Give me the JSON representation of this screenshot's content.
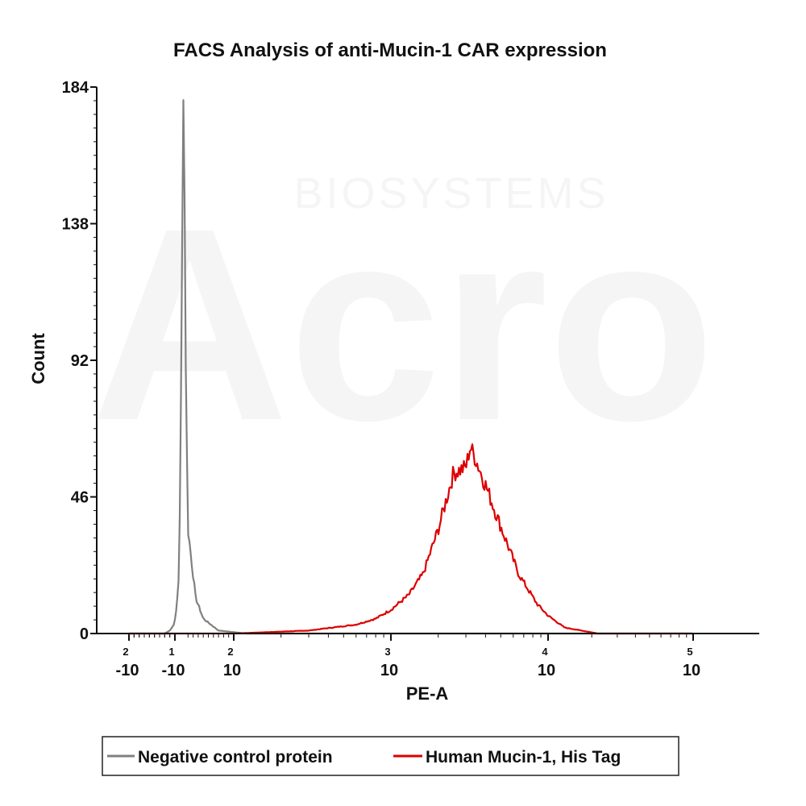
{
  "watermark": {
    "brand": "Acro",
    "subtitle": "BIOSYSTEMS"
  },
  "chart_data": {
    "type": "area",
    "title": "FACS Analysis of anti-Mucin-1 CAR expression",
    "xlabel": "PE-A",
    "ylabel": "Count",
    "x_scale": "biexponential",
    "ylim": [
      0,
      184
    ],
    "y_ticks": [
      "0",
      "46",
      "92",
      "138",
      "184"
    ],
    "x_ticks": [
      {
        "label": "-10",
        "exp": "2"
      },
      {
        "label": "-10",
        "exp": "1"
      },
      {
        "label": "10",
        "exp": "2"
      },
      {
        "label": "10",
        "exp": "3"
      },
      {
        "label": "10",
        "exp": "4"
      },
      {
        "label": "10",
        "exp": "5"
      }
    ],
    "legend_position": "bottom",
    "series": [
      {
        "name": "Negative control protein",
        "color": "#808080",
        "points": [
          [
            -100,
            0
          ],
          [
            -30,
            0
          ],
          [
            -20,
            1
          ],
          [
            -12,
            3
          ],
          [
            -8,
            8
          ],
          [
            -5,
            20
          ],
          [
            -3,
            60
          ],
          [
            -1,
            130
          ],
          [
            0,
            175
          ],
          [
            1,
            184
          ],
          [
            2,
            172
          ],
          [
            4,
            130
          ],
          [
            6,
            80
          ],
          [
            10,
            35
          ],
          [
            25,
            12
          ],
          [
            40,
            5
          ],
          [
            70,
            1
          ],
          [
            120,
            0
          ],
          [
            1000,
            0
          ],
          [
            100000,
            0
          ]
        ]
      },
      {
        "name": "Human Mucin-1, His Tag",
        "color": "#dd0000",
        "points": [
          [
            -100,
            0
          ],
          [
            100,
            0
          ],
          [
            300,
            1
          ],
          [
            600,
            3
          ],
          [
            800,
            5
          ],
          [
            1000,
            8
          ],
          [
            1300,
            13
          ],
          [
            1600,
            20
          ],
          [
            2000,
            35
          ],
          [
            2500,
            54
          ],
          [
            3000,
            56
          ],
          [
            3200,
            63
          ],
          [
            3500,
            58
          ],
          [
            4000,
            50
          ],
          [
            5000,
            36
          ],
          [
            6500,
            20
          ],
          [
            8500,
            10
          ],
          [
            10000,
            6
          ],
          [
            13000,
            2
          ],
          [
            17000,
            1
          ],
          [
            22000,
            0
          ],
          [
            100000,
            0
          ]
        ]
      }
    ]
  }
}
